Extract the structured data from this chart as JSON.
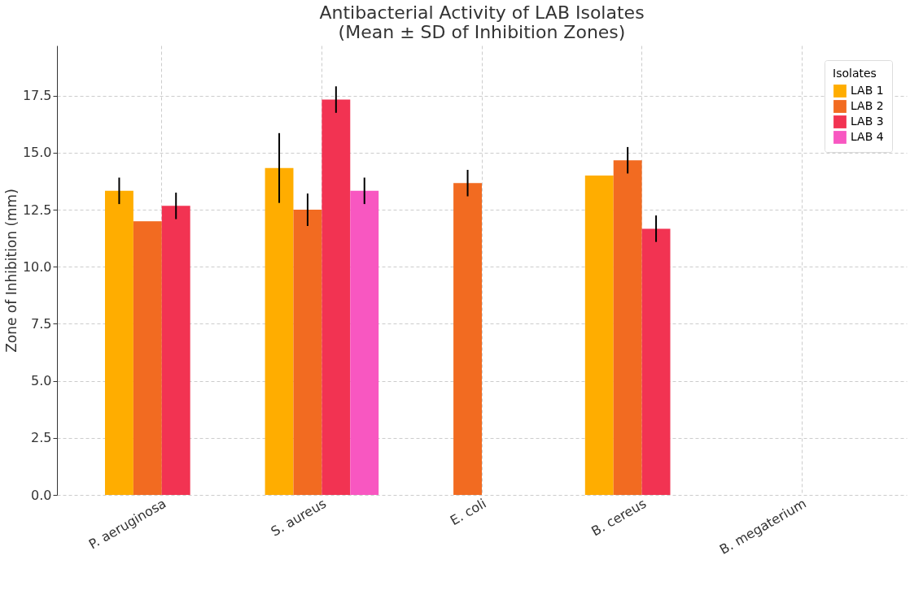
{
  "chart_data": {
    "type": "bar",
    "title": "Antibacterial Activity of LAB Isolates",
    "subtitle": "(Mean ± SD of Inhibition Zones)",
    "ylabel": "Zone of Inhibition (mm)",
    "legend_title": "Isolates",
    "legend": "top right",
    "grid": true,
    "categories": [
      "P. aeruginosa",
      "S. aureus",
      "E. coli",
      "B. cereus",
      "B. megaterium"
    ],
    "ylim": [
      0,
      19.7
    ],
    "yticks": [
      {
        "value": 0,
        "label": "0.0"
      },
      {
        "value": 2.5,
        "label": "2.5"
      },
      {
        "value": 5,
        "label": "5.0"
      },
      {
        "value": 7.5,
        "label": "7.5"
      },
      {
        "value": 10,
        "label": "10.0"
      },
      {
        "value": 12.5,
        "label": "12.5"
      },
      {
        "value": 15,
        "label": "15.0"
      },
      {
        "value": 17.5,
        "label": "17.5"
      }
    ],
    "series": [
      {
        "name": "LAB 1",
        "color": "#ffad00",
        "values": [
          13.33,
          14.33,
          null,
          14.0,
          null
        ],
        "errors": [
          0.58,
          1.53,
          null,
          null,
          null
        ]
      },
      {
        "name": "LAB 2",
        "color": "#f26b21",
        "values": [
          12.0,
          12.5,
          13.67,
          14.67,
          null
        ],
        "errors": [
          null,
          0.71,
          0.58,
          0.58,
          null
        ]
      },
      {
        "name": "LAB 3",
        "color": "#f23352",
        "values": [
          12.67,
          17.33,
          null,
          11.67,
          null
        ],
        "errors": [
          0.58,
          0.58,
          null,
          0.58,
          null
        ]
      },
      {
        "name": "LAB 4",
        "color": "#f857c1",
        "values": [
          null,
          13.33,
          null,
          null,
          null
        ],
        "errors": [
          null,
          0.58,
          null,
          null,
          null
        ]
      }
    ]
  }
}
